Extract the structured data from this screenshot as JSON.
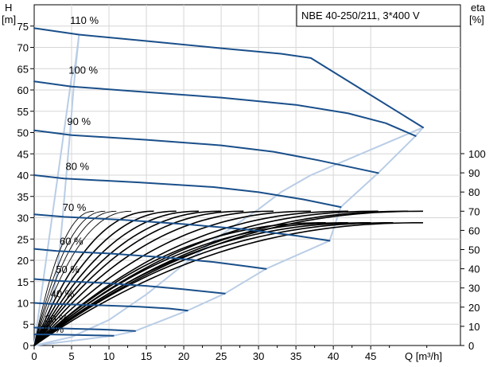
{
  "chart_data": {
    "type": "line",
    "title": "NBE 40-250/211, 3*400 V",
    "y_axis_left": {
      "label_top": "H",
      "label_unit": "[m]",
      "range": [
        0,
        80
      ],
      "ticks": [
        0,
        5,
        10,
        15,
        20,
        25,
        30,
        35,
        40,
        45,
        50,
        55,
        60,
        65,
        70,
        75
      ]
    },
    "y_axis_right": {
      "label_top": "eta",
      "label_unit": "[%]",
      "range": [
        0,
        100
      ],
      "ticks": [
        0,
        10,
        20,
        30,
        40,
        50,
        60,
        70,
        80,
        90,
        100
      ]
    },
    "x_axis": {
      "label": "Q [m³/h]",
      "range": [
        0,
        57
      ],
      "ticks": [
        0,
        5,
        10,
        15,
        20,
        25,
        30,
        35,
        40,
        45
      ]
    },
    "grid": true,
    "colors": {
      "head_curve": "#1a4f8a",
      "envelope": "#b9cde6",
      "efficiency_curve": "#000000",
      "grid": "#d6d6d6"
    },
    "speed_labels": [
      {
        "text": "110 %",
        "q": 4.8,
        "h": 75.5
      },
      {
        "text": "100 %",
        "q": 4.6,
        "h": 63.8
      },
      {
        "text": "90 %",
        "q": 4.4,
        "h": 51.8
      },
      {
        "text": "80 %",
        "q": 4.2,
        "h": 41.2
      },
      {
        "text": "70 %",
        "q": 3.8,
        "h": 31.6
      },
      {
        "text": "60 %",
        "q": 3.4,
        "h": 23.6
      },
      {
        "text": "50 %",
        "q": 2.9,
        "h": 17.0
      },
      {
        "text": "40 %",
        "q": 2.2,
        "h": 11.3
      },
      {
        "text": "30 %",
        "q": 1.4,
        "h": 5.4
      },
      {
        "text": "20 %",
        "q": 0.8,
        "h": 3.0
      }
    ],
    "series": [
      {
        "name": "110 %",
        "q": [
          0,
          6,
          15,
          25,
          33,
          37,
          52
        ],
        "h": [
          74.5,
          73.0,
          71.5,
          69.8,
          68.5,
          67.5,
          51.2
        ]
      },
      {
        "name": "100 %",
        "q": [
          0,
          5,
          15,
          25,
          35,
          42,
          47,
          51
        ],
        "h": [
          62.0,
          60.8,
          59.5,
          58.2,
          56.5,
          54.5,
          52.2,
          49.2
        ]
      },
      {
        "name": "90 %",
        "q": [
          0,
          5,
          15,
          25,
          32,
          38,
          42,
          46
        ],
        "h": [
          50.5,
          49.4,
          48.3,
          47.0,
          45.5,
          43.5,
          42.0,
          40.5
        ]
      },
      {
        "name": "80 %",
        "q": [
          0,
          4,
          14,
          24,
          30,
          36,
          41
        ],
        "h": [
          40.0,
          39.2,
          38.3,
          37.2,
          36.0,
          34.3,
          32.5
        ]
      },
      {
        "name": "70 %",
        "q": [
          0,
          4,
          12,
          20,
          28,
          35,
          39.5
        ],
        "h": [
          30.8,
          30.2,
          29.5,
          28.5,
          27.3,
          25.8,
          24.6
        ]
      },
      {
        "name": "60 %",
        "q": [
          0,
          3,
          10,
          18,
          24,
          28,
          31
        ],
        "h": [
          22.7,
          22.2,
          21.6,
          20.6,
          19.6,
          18.7,
          18.0
        ]
      },
      {
        "name": "50 %",
        "q": [
          0,
          3,
          9,
          15,
          20,
          25.5
        ],
        "h": [
          15.6,
          15.2,
          14.7,
          14.0,
          13.2,
          12.2
        ]
      },
      {
        "name": "40 %",
        "q": [
          0,
          2,
          8,
          14,
          18,
          20.5
        ],
        "h": [
          10.0,
          9.8,
          9.5,
          9.1,
          8.7,
          8.2
        ]
      },
      {
        "name": "30 %",
        "q": [
          0,
          2,
          6,
          10,
          13.5
        ],
        "h": [
          4.2,
          4.1,
          3.9,
          3.7,
          3.4
        ]
      },
      {
        "name": "20 %",
        "q": [
          0,
          2,
          5,
          8,
          10.6
        ],
        "h": [
          2.6,
          2.6,
          2.5,
          2.4,
          2.3
        ]
      }
    ],
    "operating_envelope": {
      "q": [
        0,
        5,
        5.5,
        6,
        5.3,
        4.8,
        4.3,
        3.8,
        3.4,
        2.9,
        2.3,
        1.6,
        1.0,
        0,
        0,
        10.6,
        13.5,
        20.5,
        25.5,
        31,
        39.5,
        41,
        46,
        51,
        52,
        37,
        33,
        30,
        25,
        20,
        15,
        10,
        5,
        0
      ],
      "h": [
        0,
        63,
        66,
        73,
        61,
        50,
        40,
        30,
        22.5,
        15.5,
        10,
        4.2,
        2.6,
        0,
        0,
        2.3,
        3.4,
        8.2,
        12.2,
        18.0,
        24.6,
        32.5,
        40.5,
        49.2,
        51.2,
        40,
        36,
        32,
        26,
        19,
        12,
        6,
        2,
        0
      ]
    },
    "efficiency_curves": {
      "note_hidden": false,
      "families": [
        {
          "q_max": 8.0,
          "eta_max": 70
        },
        {
          "q_max": 9.5,
          "eta_max": 70
        },
        {
          "q_max": 11.0,
          "eta_max": 70
        },
        {
          "q_max": 13.0,
          "eta_max": 70
        },
        {
          "q_max": 16.0,
          "eta_max": 70
        },
        {
          "q_max": 19.0,
          "eta_max": 70
        },
        {
          "q_max": 22.0,
          "eta_max": 70
        },
        {
          "q_max": 25.0,
          "eta_max": 70
        },
        {
          "q_max": 28.0,
          "eta_max": 70
        },
        {
          "q_max": 32.0,
          "eta_max": 70
        },
        {
          "q_max": 37.0,
          "eta_max": 70
        },
        {
          "q_max": 42.0,
          "eta_max": 70
        },
        {
          "q_max": 46.0,
          "eta_max": 70
        },
        {
          "q_max": 50.0,
          "eta_max": 70
        },
        {
          "q_max": 52.0,
          "eta_max": 70
        },
        {
          "q_max": 52.0,
          "eta_max": 64
        },
        {
          "q_max": 48.0,
          "eta_max": 64
        },
        {
          "q_max": 45.0,
          "eta_max": 64
        },
        {
          "q_max": 42.0,
          "eta_max": 64
        },
        {
          "q_max": 39.0,
          "eta_max": 64
        }
      ]
    }
  }
}
